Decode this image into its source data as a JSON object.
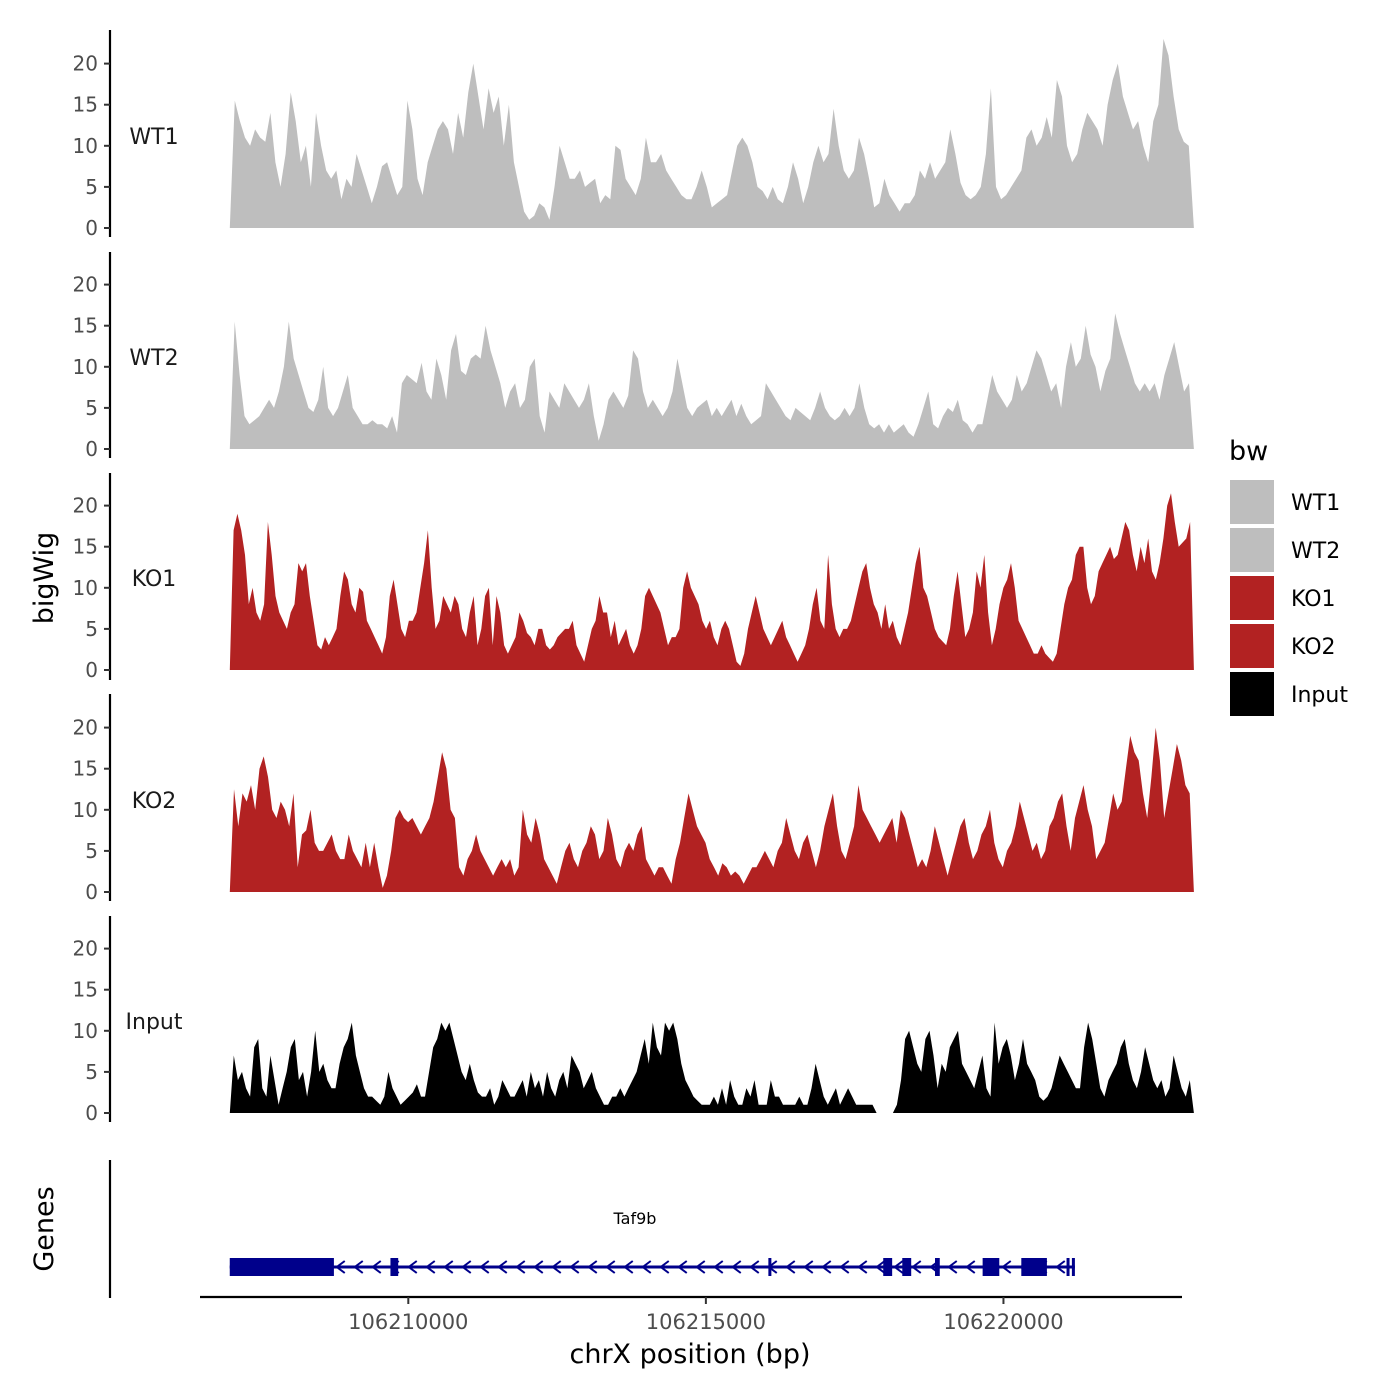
{
  "chart_data": {
    "type": "area",
    "ylabel": "bigWig",
    "xlabel": "chrX position (bp)",
    "gene_axis_label": "Genes",
    "ylim": [
      0,
      24
    ],
    "yticks": [
      0,
      5,
      10,
      15,
      20
    ],
    "xlim": [
      106206500,
      106223000
    ],
    "xticks": [
      106210000,
      106215000,
      106220000
    ],
    "xtick_labels": [
      "106210000",
      "106215000",
      "106220000"
    ],
    "legend": {
      "title": "bw",
      "position": "right",
      "entries": [
        {
          "label": "WT1",
          "color": "#BEBEBE"
        },
        {
          "label": "WT2",
          "color": "#BEBEBE"
        },
        {
          "label": "KO1",
          "color": "#B22222"
        },
        {
          "label": "KO2",
          "color": "#B22222"
        },
        {
          "label": "Input",
          "color": "#000000"
        }
      ]
    },
    "series": [
      {
        "name": "WT1",
        "color": "#BEBEBE",
        "x_start": 106207000,
        "x_end": 106223200,
        "values": [
          0,
          15.5,
          13,
          11,
          10,
          12,
          11,
          10.5,
          14,
          8,
          5,
          9,
          16.5,
          13,
          8,
          10,
          5,
          14,
          10,
          7,
          6,
          7,
          3.5,
          6,
          5,
          9,
          7,
          5,
          3,
          5,
          7.5,
          8,
          6,
          4,
          5,
          15.5,
          12,
          6,
          4,
          8,
          10,
          12,
          13,
          12,
          9,
          14,
          11,
          16.5,
          20,
          16,
          12,
          17,
          14,
          16,
          10,
          15,
          8,
          5,
          2,
          1,
          1.5,
          3,
          2.5,
          1,
          5,
          10,
          8,
          6,
          6,
          7,
          5,
          5.5,
          6,
          3,
          4,
          3.5,
          10,
          9.5,
          6,
          5,
          4,
          6,
          11,
          8,
          8,
          9,
          7,
          6,
          5,
          4,
          3.5,
          3.5,
          5,
          7,
          5,
          2.5,
          3,
          3.5,
          4,
          7,
          10,
          11,
          10,
          8,
          5,
          4.5,
          3.5,
          5,
          3.5,
          3,
          5,
          8,
          6,
          3,
          5,
          8,
          10,
          8,
          9,
          14.5,
          10,
          7,
          6,
          7,
          11,
          9,
          6,
          2.5,
          3,
          6,
          4,
          3,
          2,
          3,
          3,
          4,
          7,
          6,
          8,
          6,
          7,
          8,
          12,
          9,
          5.5,
          4,
          3.5,
          4,
          5,
          9,
          17,
          5,
          3.5,
          4,
          5,
          6,
          7,
          11,
          12,
          10,
          11,
          13.5,
          11,
          18,
          16,
          10,
          8,
          9,
          12,
          14,
          13,
          12,
          10,
          15,
          18,
          20,
          16,
          14,
          12,
          13,
          10,
          8,
          13,
          15,
          23,
          21,
          16,
          12,
          10.5,
          10,
          0
        ]
      },
      {
        "name": "WT2",
        "color": "#BEBEBE",
        "x_start": 106207000,
        "x_end": 106223200,
        "values": [
          0,
          15.5,
          9,
          4,
          3,
          3.5,
          4,
          5,
          6,
          5,
          7,
          10,
          15.5,
          11,
          9,
          7,
          5,
          4.5,
          6,
          10,
          5,
          4,
          5,
          7,
          9,
          5,
          4,
          3,
          3,
          3.5,
          3,
          3,
          2.5,
          4,
          2,
          8,
          9,
          8.5,
          8,
          10.5,
          7,
          6,
          11,
          9,
          6,
          12,
          14,
          9.5,
          9,
          11,
          11.5,
          11,
          15,
          12,
          10,
          8,
          5,
          7,
          8,
          5,
          6,
          10,
          11,
          4,
          2,
          7,
          6,
          5,
          8,
          7,
          6,
          5,
          6,
          8,
          4,
          1,
          3,
          6,
          7,
          6,
          5,
          6.5,
          12,
          11,
          7,
          5,
          6,
          5,
          4,
          5,
          7,
          11,
          8,
          5,
          4,
          5,
          5.5,
          6,
          4,
          5,
          4,
          5,
          6,
          4,
          5.5,
          4,
          3,
          3.5,
          4,
          8,
          7,
          6,
          5,
          4,
          3.5,
          5,
          4.5,
          4,
          3.5,
          5,
          7,
          5,
          4,
          3.5,
          4,
          5,
          4,
          5,
          8,
          5,
          3,
          2.5,
          3,
          2,
          3,
          2,
          2.5,
          3,
          2,
          1.5,
          3,
          5,
          7,
          3,
          2.5,
          4,
          5,
          4.5,
          6,
          3.5,
          3,
          2,
          3,
          3,
          6,
          9,
          7,
          6,
          5,
          6,
          9,
          7,
          8,
          10,
          12,
          11,
          9,
          7,
          8,
          5,
          10,
          13,
          10,
          11,
          15,
          11.5,
          10,
          7,
          9.5,
          11,
          16.5,
          14,
          12,
          10,
          8,
          7,
          8,
          7,
          8,
          6,
          9,
          11,
          13,
          10,
          7,
          8,
          0
        ]
      },
      {
        "name": "KO1",
        "color": "#B22222",
        "x_start": 106207000,
        "x_end": 106223200,
        "values": [
          0,
          17,
          19,
          17,
          14,
          8,
          10,
          7,
          6,
          8,
          18,
          14,
          9,
          7,
          6,
          5,
          7,
          8,
          13,
          12,
          13,
          9,
          6,
          3,
          2.5,
          4,
          3,
          4,
          5,
          9,
          12,
          11,
          8,
          7,
          10,
          9.5,
          6,
          5,
          4,
          3,
          2,
          4,
          9,
          11,
          8,
          5,
          4,
          6,
          6,
          7,
          10,
          13,
          17,
          10,
          5,
          6,
          9,
          8,
          7,
          9,
          8,
          5,
          4,
          7,
          9,
          3,
          5,
          9,
          10,
          3,
          9,
          7,
          3,
          2,
          3,
          4,
          7,
          6,
          4.5,
          4,
          3,
          5,
          5,
          3,
          2.5,
          3,
          4,
          4.5,
          5,
          5,
          6,
          3,
          2,
          1,
          3,
          5,
          6,
          9,
          7,
          7,
          4,
          6,
          3,
          4,
          5,
          3,
          2,
          3,
          5,
          9,
          10,
          9,
          8,
          7,
          5,
          3,
          4,
          4,
          5,
          10,
          12,
          10,
          9,
          8,
          6,
          5,
          6,
          4,
          3,
          5,
          6,
          5,
          3,
          1,
          0.5,
          2,
          5,
          7,
          9,
          7,
          5,
          4,
          3,
          4,
          5,
          6,
          4,
          3,
          2,
          1,
          2,
          3,
          5,
          8,
          10,
          6,
          5,
          14,
          8,
          5,
          4,
          5,
          5,
          6,
          8,
          10,
          12,
          13,
          10,
          8,
          7,
          5,
          8,
          5,
          6,
          4,
          3,
          5,
          7,
          10,
          13,
          15,
          10,
          9,
          7,
          5,
          4,
          3.5,
          3,
          5,
          9,
          12,
          8,
          4,
          5,
          7,
          12,
          10,
          14,
          7,
          3,
          5,
          8,
          10,
          11,
          13,
          10,
          6,
          5,
          4,
          3,
          2,
          2,
          3,
          2,
          1.5,
          1,
          2,
          5,
          8,
          10,
          11,
          14,
          15,
          15,
          10,
          8,
          9,
          12,
          13,
          14,
          15,
          13.5,
          14,
          16,
          18,
          17,
          14,
          12,
          15,
          13,
          16,
          12,
          11,
          13,
          16,
          20,
          21.5,
          18,
          15,
          15.5,
          16,
          18,
          0
        ]
      },
      {
        "name": "KO2",
        "color": "#B22222",
        "x_start": 106207000,
        "x_end": 106223200,
        "values": [
          0,
          12.5,
          8,
          12,
          11,
          13,
          10,
          15,
          16.5,
          14,
          10,
          9,
          11,
          10,
          8,
          12,
          3,
          7,
          7.5,
          10,
          6,
          5,
          5,
          6,
          7,
          5,
          4,
          4,
          7,
          5,
          4,
          3,
          6,
          3,
          6,
          3,
          0.5,
          2,
          5,
          9,
          10,
          9,
          8.5,
          9,
          8,
          7,
          8,
          9,
          11,
          14,
          17,
          15,
          10,
          9,
          3,
          2,
          4,
          5,
          7,
          5,
          4,
          3,
          2,
          3,
          4,
          3,
          4,
          2,
          3,
          10,
          7,
          6,
          9,
          7,
          4,
          3,
          2,
          1,
          3,
          5,
          6,
          4,
          3,
          5,
          6,
          8,
          7,
          4,
          5,
          9,
          7,
          4,
          3,
          5,
          6,
          5,
          7,
          8,
          4,
          3,
          2,
          3,
          3,
          2,
          1,
          4,
          6,
          9,
          12,
          10,
          8,
          7,
          6,
          4,
          3,
          2,
          3.5,
          3,
          2,
          2.5,
          2,
          1,
          2,
          3,
          3,
          4,
          5,
          4,
          3,
          5,
          6,
          9,
          7,
          5,
          4,
          6,
          7,
          5,
          3,
          5,
          8,
          10,
          12,
          8,
          5,
          4,
          6,
          8,
          13,
          10,
          9,
          8,
          7,
          6,
          7,
          8,
          9,
          6,
          10,
          9,
          7,
          5,
          3,
          4,
          3,
          5,
          8,
          6,
          4,
          2,
          4,
          6,
          8,
          9,
          6,
          4,
          5,
          7,
          8,
          10,
          6,
          4,
          3,
          5,
          6,
          8,
          11,
          9,
          7,
          5,
          6,
          4,
          5,
          8,
          9,
          11,
          12,
          8,
          5,
          9,
          11,
          13,
          10,
          8,
          4,
          5,
          6,
          9,
          12,
          10,
          11,
          15,
          19,
          17,
          16,
          12,
          9,
          14,
          20,
          16,
          9,
          12,
          15,
          18,
          16,
          13,
          12,
          0
        ]
      },
      {
        "name": "Input",
        "color": "#000000",
        "x_start": 106207000,
        "x_end": 106223200,
        "values": [
          0,
          7,
          4,
          5,
          3,
          2,
          8,
          9,
          3,
          2,
          7,
          4,
          1,
          3,
          5,
          8,
          9,
          4,
          5,
          2,
          5,
          10,
          5,
          6,
          4,
          3,
          3,
          6,
          8,
          9,
          11,
          7,
          5,
          3,
          2,
          2,
          1.5,
          1,
          2,
          5,
          3,
          2,
          1,
          1.5,
          2,
          2.5,
          3.5,
          2,
          2,
          5,
          8,
          9,
          11,
          10,
          11,
          9,
          7,
          5,
          4,
          6,
          4,
          2.5,
          2,
          2,
          3,
          1,
          2,
          4,
          3,
          2,
          2,
          3,
          4,
          2,
          5,
          3,
          4,
          2,
          5,
          3,
          2,
          4,
          5,
          3,
          7,
          6,
          5,
          3,
          4,
          5,
          3,
          2,
          1,
          1,
          2,
          2,
          3,
          2,
          3,
          4,
          5,
          7,
          9,
          6,
          11,
          8,
          7,
          11,
          10,
          11,
          9,
          6,
          4,
          3,
          2,
          1.5,
          1,
          1,
          1,
          2,
          1,
          3,
          1,
          4,
          2,
          1,
          1,
          3,
          2,
          4,
          1,
          1,
          1,
          4,
          2,
          2,
          1,
          1,
          1,
          1,
          2,
          1,
          1,
          3,
          6,
          4,
          2,
          1,
          2,
          3,
          1,
          2,
          3,
          2,
          1,
          1,
          1,
          1,
          1,
          0,
          0,
          0,
          0,
          0,
          1,
          4,
          9,
          10,
          8,
          6,
          5,
          9,
          10,
          7,
          3,
          6,
          5,
          8,
          9,
          10,
          6,
          5,
          4,
          3,
          5,
          7,
          3,
          2,
          11,
          6,
          8,
          9,
          7,
          4,
          6,
          9,
          6,
          5,
          4,
          2,
          1.5,
          2,
          3,
          5,
          7,
          6,
          5,
          4,
          3,
          3,
          8,
          11,
          9,
          6,
          3,
          2,
          4,
          5,
          6,
          8,
          9,
          6,
          4,
          3,
          5,
          8,
          6,
          4,
          3,
          4,
          2,
          3,
          7,
          5,
          3,
          2,
          4,
          0
        ]
      }
    ],
    "gene_track": {
      "gene_name": "Taf9b",
      "strand": "-",
      "line_start": 106207000,
      "line_end": 106221200,
      "exons": [
        [
          106207000,
          106208750
        ],
        [
          106209700,
          106209830
        ],
        [
          106216050,
          106216100
        ],
        [
          106217980,
          106218130
        ],
        [
          106218300,
          106218450
        ],
        [
          106218850,
          106218930
        ],
        [
          106219650,
          106219930
        ],
        [
          106220300,
          106220730
        ],
        [
          106221060,
          106221100
        ],
        [
          106221150,
          106221190
        ]
      ]
    }
  }
}
